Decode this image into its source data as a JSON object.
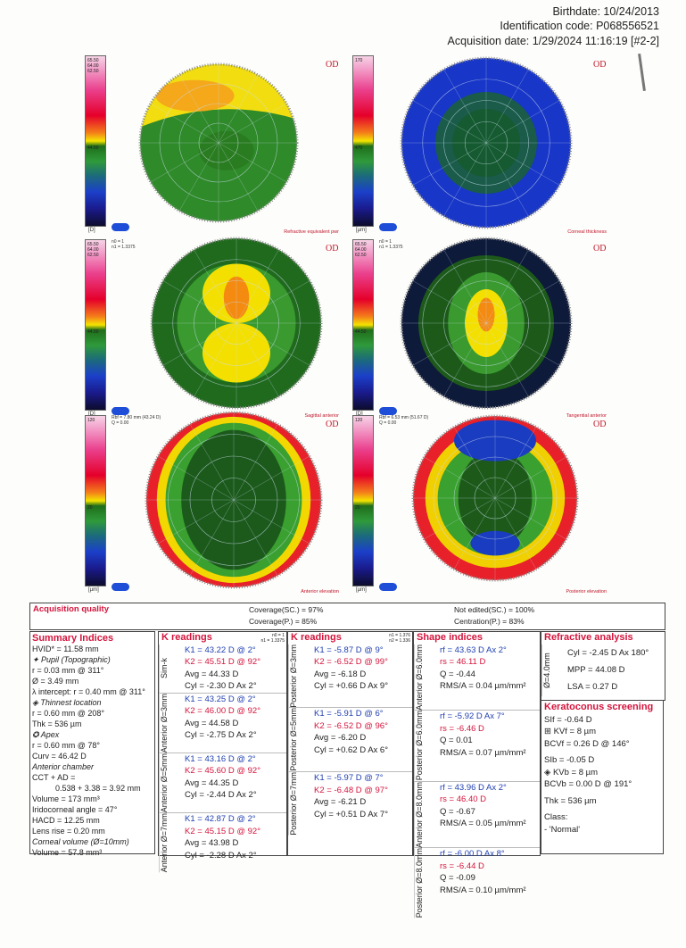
{
  "header": {
    "birthdate": "Birthdate: 10/24/2013",
    "id_code": "Identification code: P068556521",
    "acq_date": "Acquisition date: 1/29/2024 11:16:19 [#2-2]"
  },
  "maps": [
    {
      "title": "Refractive equivalent pwr",
      "eye": "OD",
      "unit": "[D]",
      "scale_labels": [
        "65.50",
        "64.00",
        "62.50",
        "44.50"
      ]
    },
    {
      "title": "Corneal thickness",
      "eye": "OD",
      "unit": "[µm]",
      "scale_labels": [
        "170",
        "470"
      ]
    },
    {
      "title": "Sagittal anterior",
      "eye": "OD",
      "unit": "[D]",
      "scale_labels": [
        "65.50",
        "64.00",
        "62.50",
        "44.50"
      ],
      "meta": [
        "n0 = 1",
        "n1 = 1.3375"
      ]
    },
    {
      "title": "Tangential anterior",
      "eye": "OD",
      "unit": "[D]",
      "scale_labels": [
        "65.50",
        "64.00",
        "62.50",
        "44.50"
      ],
      "meta": [
        "n0 = 1",
        "n1 = 1.3375"
      ]
    },
    {
      "title": "Anterior elevation",
      "eye": "OD",
      "unit": "[µm]",
      "scale_labels": [
        "120",
        "20"
      ],
      "meta": [
        "Rbf = 7.80 mm (43.24 D)",
        "Q = 0.00"
      ]
    },
    {
      "title": "Posterior elevation",
      "eye": "OD",
      "unit": "[µm]",
      "scale_labels": [
        "120",
        "20"
      ],
      "meta": [
        "Rbf = 6.53 mm (51.67 D)",
        "Q = 0.00"
      ]
    }
  ],
  "acquisition": {
    "title": "Acquisition quality",
    "coverage_sc": "Coverage(SC.) = 97%",
    "coverage_p": "Coverage(P.) = 85%",
    "not_edited": "Not edited(SC.) = 100%",
    "centration": "Centration(P.) = 83%"
  },
  "summary": {
    "title": "Summary Indices",
    "lines": [
      "HVID* = 11.58 mm",
      "✦ Pupil (Topographic)",
      "r = 0.03 mm @ 311°",
      "Ø = 3.49 mm",
      "λ intercept: r = 0.40 mm @ 311°",
      "◈ Thinnest location",
      "r = 0.60 mm @ 208°",
      "Thk = 536 µm",
      "✪ Apex",
      "r = 0.60 mm @ 78°",
      "Curv = 46.42 D",
      "Anterior chamber",
      "CCT + AD =",
      "0.538 + 3.38 = 3.92 mm",
      "Volume = 173 mm³",
      "Iridocorneal angle = 47°",
      "HACD = 12.25 mm",
      "Lens rise = 0.20 mm",
      "Corneal volume (Ø=10mm)",
      "Volume = 57.8 mm³"
    ]
  },
  "k_anterior": {
    "title": "K readings",
    "n": [
      "n0 = 1",
      "n1 = 1.3375"
    ],
    "groups": [
      {
        "label": "Sim-k",
        "k1": "K1 = 43.22 D @ 2°",
        "k2": "K2 = 45.51 D @ 92°",
        "avg": "Avg = 44.33 D",
        "cyl": "Cyl = -2.30 D Ax 2°"
      },
      {
        "label": "Anterior Ø=3mm",
        "k1": "K1 = 43.25 D @ 2°",
        "k2": "K2 = 46.00 D @ 92°",
        "avg": "Avg = 44.58 D",
        "cyl": "Cyl = -2.75 D Ax 2°"
      },
      {
        "label": "Anterior Ø=5mm",
        "k1": "K1 = 43.16 D @ 2°",
        "k2": "K2 = 45.60 D @ 92°",
        "avg": "Avg = 44.35 D",
        "cyl": "Cyl = -2.44 D Ax 2°"
      },
      {
        "label": "Anterior Ø=7mm",
        "k1": "K1 = 42.87 D @ 2°",
        "k2": "K2 = 45.15 D @ 92°",
        "avg": "Avg = 43.98 D",
        "cyl": "Cyl = -2.28 D Ax 2°"
      }
    ]
  },
  "k_posterior": {
    "title": "K readings",
    "n": [
      "n1 = 1.376",
      "n2 = 1.336"
    ],
    "groups": [
      {
        "label": "Posterior Ø=3mm",
        "k1": "K1 = -5.87 D @ 9°",
        "k2": "K2 = -6.52 D @ 99°",
        "avg": "Avg = -6.18 D",
        "cyl": "Cyl = +0.66 D Ax 9°"
      },
      {
        "label": "Posterior Ø=5mm",
        "k1": "K1 = -5.91 D @ 6°",
        "k2": "K2 = -6.52 D @ 96°",
        "avg": "Avg = -6.20 D",
        "cyl": "Cyl = +0.62 D Ax 6°"
      },
      {
        "label": "Posterior Ø=7mm",
        "k1": "K1 = -5.97 D @ 7°",
        "k2": "K2 = -6.48 D @ 97°",
        "avg": "Avg = -6.21 D",
        "cyl": "Cyl = +0.51 D Ax 7°"
      }
    ]
  },
  "shape": {
    "title": "Shape indices",
    "groups": [
      {
        "label": "Anterior Ø=6.0mm",
        "rf": "rf = 43.63 D Ax 2°",
        "rs": "rs = 46.11 D",
        "q": "Q = -0.44",
        "rms": "RMS/A = 0.04 µm/mm²"
      },
      {
        "label": "Posterior Ø=6.0mm",
        "rf": "rf = -5.92 D Ax 7°",
        "rs": "rs = -6.46 D",
        "q": "Q = 0.01",
        "rms": "RMS/A = 0.07 µm/mm²"
      },
      {
        "label": "Anterior Ø=8.0mm",
        "rf": "rf = 43.96 D Ax 2°",
        "rs": "rs = 46.40 D",
        "q": "Q = -0.67",
        "rms": "RMS/A = 0.05 µm/mm²"
      },
      {
        "label": "Posterior Ø=8.0mm",
        "rf": "rf = -6.00 D Ax 8°",
        "rs": "rs = -6.44 D",
        "q": "Q = -0.09",
        "rms": "RMS/A = 0.10 µm/mm²"
      }
    ]
  },
  "refractive": {
    "title": "Refractive analysis",
    "label": "Ø=4.0mm",
    "cyl": "Cyl = -2.45 D Ax 180°",
    "mpp": "MPP = 44.08 D",
    "lsa": "LSA = 0.27 D"
  },
  "keratoconus": {
    "title": "Keratoconus screening",
    "lines": [
      "SIf = -0.64 D",
      "⊞ KVf = 8 µm",
      "BCVf = 0.26 D @ 146°",
      "SIb = -0.05 D",
      "◈ KVb = 8 µm",
      "BCVb = 0.00 D @ 191°",
      "Thk = 536 µm",
      "Class:",
      "- 'Normal'"
    ]
  }
}
